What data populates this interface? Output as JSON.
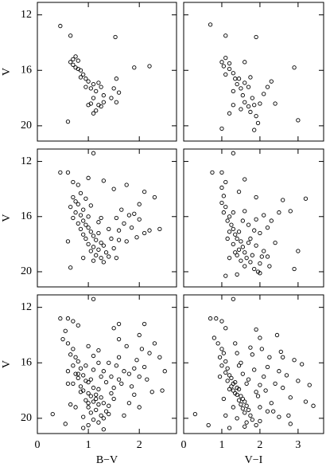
{
  "chart_data": [
    {
      "type": "scatter",
      "color": "#000000",
      "ylabel": "V",
      "xlim": [
        0,
        2.73
      ],
      "ylim": [
        21.1,
        11.1
      ],
      "yticks": [
        12,
        16,
        20
      ],
      "x": [
        0.45,
        0.65,
        0.7,
        0.75,
        0.8,
        0.7,
        0.75,
        0.8,
        0.85,
        0.65,
        0.9,
        0.95,
        0.85,
        1.0,
        1.1,
        1.05,
        1.15,
        0.95,
        1.2,
        1.25,
        1.3,
        1.1,
        1.05,
        1.2,
        1.25,
        1.15,
        1.1,
        1.5,
        1.6,
        1.55,
        1.45,
        1.55,
        1.9,
        2.2,
        1.53,
        0.6,
        1.0,
        1.3
      ],
      "values": [
        12.8,
        13.5,
        15.2,
        15.0,
        15.3,
        15.6,
        15.8,
        15.9,
        16.0,
        15.4,
        16.3,
        16.6,
        16.5,
        16.8,
        17.0,
        17.3,
        17.5,
        17.2,
        16.9,
        17.2,
        17.8,
        18.0,
        18.4,
        18.5,
        18.6,
        18.9,
        19.1,
        17.3,
        17.6,
        18.3,
        18.0,
        16.6,
        15.8,
        15.7,
        13.6,
        19.7,
        18.5,
        18.3
      ]
    },
    {
      "type": "scatter",
      "color": "#000000",
      "xlim": [
        0,
        3.67
      ],
      "ylim": [
        21.1,
        11.1
      ],
      "x": [
        0.7,
        1.1,
        1.9,
        2.9,
        3.0,
        1.0,
        1.1,
        1.05,
        1.2,
        1.2,
        1.3,
        1.1,
        1.35,
        1.4,
        1.5,
        1.6,
        1.45,
        1.7,
        1.3,
        1.55,
        1.8,
        1.6,
        1.7,
        1.85,
        1.5,
        1.75,
        1.9,
        2.0,
        2.1,
        2.3,
        2.4,
        1.95,
        1.85,
        1.0,
        1.2,
        1.3,
        2.2,
        1.6,
        1.75
      ],
      "values": [
        12.7,
        13.5,
        13.6,
        15.8,
        19.6,
        15.4,
        15.1,
        15.7,
        15.5,
        15.9,
        16.2,
        16.3,
        16.6,
        17.0,
        17.3,
        16.9,
        16.6,
        17.2,
        17.5,
        17.8,
        18.0,
        18.3,
        18.6,
        18.5,
        18.8,
        19.0,
        19.3,
        18.4,
        17.7,
        16.8,
        18.4,
        19.8,
        20.3,
        20.2,
        19.1,
        18.5,
        17.2,
        15.4,
        16.5
      ]
    },
    {
      "type": "scatter",
      "color": "#000000",
      "ylabel": "V",
      "xlim": [
        0,
        2.73
      ],
      "ylim": [
        21.1,
        11.1
      ],
      "yticks": [
        12,
        16,
        20
      ],
      "x": [
        0.45,
        0.6,
        0.7,
        0.8,
        1.0,
        1.1,
        0.85,
        0.7,
        0.75,
        0.8,
        0.65,
        0.9,
        0.75,
        0.85,
        0.7,
        0.9,
        0.8,
        0.95,
        1.0,
        0.85,
        1.05,
        0.9,
        1.1,
        1.2,
        0.95,
        1.15,
        1.25,
        1.0,
        1.1,
        1.3,
        1.2,
        1.05,
        1.35,
        1.15,
        1.25,
        1.4,
        1.1,
        1.3,
        0.9,
        1.5,
        1.45,
        1.6,
        1.7,
        1.55,
        1.8,
        1.65,
        1.9,
        2.0,
        1.85,
        2.1,
        1.95,
        2.2,
        1.75,
        2.0,
        2.3,
        1.5,
        1.3,
        1.75,
        2.1,
        1.6,
        1.4,
        1.0,
        0.6,
        0.65,
        1.2,
        1.55,
        0.95,
        1.05,
        2.4,
        1.25
      ],
      "values": [
        12.8,
        12.8,
        13.5,
        13.7,
        13.2,
        11.4,
        14.3,
        14.6,
        14.9,
        15.1,
        15.3,
        15.5,
        15.7,
        15.9,
        16.1,
        16.3,
        16.5,
        16.6,
        16.8,
        16.9,
        17.1,
        17.3,
        17.4,
        17.2,
        17.6,
        17.7,
        17.9,
        18.0,
        18.2,
        18.1,
        18.4,
        18.5,
        18.6,
        18.8,
        19.0,
        18.9,
        19.2,
        19.3,
        19.0,
        18.3,
        17.6,
        17.0,
        16.5,
        16.1,
        15.9,
        15.5,
        15.8,
        16.2,
        16.8,
        17.2,
        17.5,
        17.0,
        17.8,
        15.1,
        14.6,
        14.0,
        13.4,
        13.7,
        14.2,
        17.7,
        16.9,
        16.0,
        17.8,
        19.7,
        16.4,
        19.0,
        14.7,
        15.2,
        16.9,
        16.1
      ]
    },
    {
      "type": "scatter",
      "color": "#000000",
      "xlim": [
        0,
        3.67
      ],
      "ylim": [
        21.1,
        11.1
      ],
      "x": [
        0.75,
        1.0,
        1.1,
        1.3,
        1.6,
        2.8,
        3.2,
        3.0,
        2.9,
        1.0,
        1.05,
        1.0,
        1.1,
        1.05,
        1.2,
        1.15,
        1.25,
        1.3,
        1.2,
        1.35,
        1.45,
        1.4,
        1.5,
        1.3,
        1.55,
        1.45,
        1.6,
        1.4,
        1.65,
        1.5,
        1.75,
        1.6,
        1.85,
        1.95,
        2.0,
        1.8,
        1.9,
        2.1,
        1.75,
        2.0,
        2.2,
        1.7,
        1.9,
        2.1,
        1.6,
        2.3,
        2.4,
        2.2,
        2.5,
        1.9,
        1.45,
        1.2,
        1.1,
        1.35,
        1.55,
        1.7,
        1.3,
        2.05,
        2.25,
        1.15,
        1.85,
        2.6,
        1.4,
        2.0
      ],
      "values": [
        12.8,
        12.8,
        13.5,
        11.4,
        13.3,
        15.6,
        14.7,
        18.5,
        19.8,
        13.9,
        14.5,
        15.0,
        15.3,
        15.7,
        16.0,
        16.3,
        16.6,
        16.9,
        17.1,
        17.3,
        17.1,
        17.6,
        17.8,
        18.0,
        18.2,
        18.4,
        18.6,
        18.8,
        19.0,
        19.2,
        19.3,
        19.6,
        19.8,
        20.0,
        19.4,
        18.8,
        18.1,
        18.5,
        17.6,
        17.2,
        16.8,
        16.6,
        16.2,
        15.9,
        15.6,
        16.3,
        17.9,
        18.9,
        15.7,
        14.6,
        14.2,
        19.0,
        20.3,
        18.6,
        16.3,
        17.9,
        15.7,
        18.9,
        19.6,
        17.6,
        17.0,
        14.8,
        20.2,
        20.1
      ]
    },
    {
      "type": "scatter",
      "color": "#000000",
      "ylabel": "V",
      "xlabel": "B−V",
      "xlim": [
        0,
        2.73
      ],
      "ylim": [
        21.1,
        11.1
      ],
      "xticks": [
        0,
        1,
        2
      ],
      "yticks": [
        12,
        16,
        20
      ],
      "x": [
        0.45,
        0.6,
        0.55,
        0.7,
        0.8,
        1.1,
        1.5,
        1.6,
        2.0,
        2.1,
        0.5,
        0.6,
        0.7,
        0.65,
        0.75,
        0.8,
        0.7,
        0.85,
        0.6,
        0.75,
        0.9,
        0.8,
        0.95,
        0.7,
        1.0,
        0.85,
        1.1,
        0.9,
        1.2,
        1.0,
        1.05,
        1.15,
        1.25,
        0.95,
        1.1,
        1.3,
        1.2,
        1.0,
        1.4,
        1.15,
        1.05,
        1.35,
        1.25,
        0.9,
        1.1,
        1.2,
        1.3,
        1.0,
        1.15,
        1.45,
        0.85,
        1.05,
        1.25,
        0.8,
        1.35,
        1.1,
        0.95,
        1.2,
        1.5,
        1.3,
        1.0,
        0.75,
        1.4,
        1.6,
        1.7,
        1.55,
        1.8,
        1.65,
        1.9,
        2.0,
        1.85,
        2.1,
        1.95,
        2.2,
        2.3,
        2.4,
        2.5,
        2.15,
        1.75,
        2.05,
        1.6,
        2.25,
        1.5,
        1.8,
        1.45,
        0.3,
        0.55,
        0.65,
        1.2,
        1.0,
        1.6,
        1.4,
        2.45,
        2.0,
        1.3,
        0.9,
        1.7,
        0.6,
        1.9,
        1.1
      ],
      "values": [
        12.8,
        12.8,
        13.7,
        13.0,
        13.3,
        11.4,
        13.5,
        13.2,
        14.0,
        13.2,
        14.3,
        14.6,
        15.0,
        15.4,
        15.6,
        15.9,
        16.2,
        16.4,
        16.6,
        16.8,
        16.9,
        17.1,
        17.3,
        17.5,
        17.4,
        17.7,
        17.8,
        18.0,
        17.9,
        18.2,
        18.4,
        18.3,
        18.5,
        18.7,
        18.8,
        18.9,
        19.0,
        19.2,
        19.1,
        19.4,
        19.6,
        19.5,
        19.8,
        19.9,
        20.1,
        20.3,
        20.0,
        20.5,
        18.6,
        18.2,
        18.1,
        17.2,
        17.0,
        16.8,
        17.4,
        16.5,
        16.2,
        16.0,
        17.8,
        16.6,
        18.9,
        19.2,
        19.7,
        17.2,
        16.6,
        16.2,
        16.8,
        17.5,
        16.4,
        17.0,
        17.7,
        16.3,
        15.8,
        15.3,
        14.6,
        15.6,
        16.6,
        17.2,
        14.8,
        15.0,
        14.3,
        18.1,
        18.6,
        18.9,
        17.0,
        19.7,
        20.4,
        19.0,
        15.1,
        14.8,
        15.6,
        16.0,
        18.0,
        19.2,
        20.8,
        20.7,
        19.8,
        17.5,
        18.3,
        15.5
      ]
    },
    {
      "type": "scatter",
      "color": "#000000",
      "xlabel": "V−I",
      "xlim": [
        0,
        3.67
      ],
      "ylim": [
        21.1,
        11.1
      ],
      "xticks": [
        0,
        1,
        2,
        3
      ],
      "x": [
        0.7,
        0.85,
        1.0,
        1.1,
        1.3,
        1.9,
        2.0,
        0.8,
        0.9,
        1.0,
        1.05,
        0.95,
        1.1,
        1.0,
        1.15,
        1.1,
        1.2,
        1.25,
        1.15,
        1.3,
        1.35,
        1.25,
        1.4,
        1.3,
        1.45,
        1.35,
        1.5,
        1.4,
        1.55,
        1.45,
        1.6,
        1.5,
        1.65,
        1.55,
        1.7,
        1.6,
        1.75,
        1.4,
        1.8,
        1.65,
        1.9,
        1.3,
        1.55,
        1.85,
        1.2,
        1.45,
        2.0,
        1.7,
        1.95,
        2.1,
        2.2,
        2.0,
        2.3,
        2.4,
        2.15,
        2.5,
        2.6,
        2.35,
        2.7,
        2.8,
        3.0,
        3.2,
        3.4,
        2.9,
        2.55,
        2.25,
        2.05,
        1.8,
        2.75,
        3.1,
        0.3,
        0.65,
        1.2,
        1.6,
        2.0,
        2.5,
        1.35,
        1.75,
        2.45,
        3.3,
        1.05,
        1.5,
        2.6,
        0.95,
        1.9,
        2.2,
        1.1,
        1.65,
        2.8,
        1.4
      ],
      "values": [
        12.8,
        12.8,
        13.0,
        13.5,
        11.4,
        13.6,
        14.2,
        14.2,
        14.6,
        15.0,
        15.3,
        15.6,
        15.9,
        16.2,
        16.4,
        16.7,
        16.9,
        17.1,
        17.3,
        17.5,
        17.4,
        17.7,
        17.8,
        18.0,
        17.9,
        18.2,
        18.4,
        18.3,
        18.6,
        18.7,
        18.8,
        19.0,
        19.1,
        19.3,
        19.4,
        19.6,
        19.8,
        20.0,
        20.1,
        20.3,
        20.5,
        19.2,
        16.8,
        16.5,
        17.9,
        16.2,
        17.6,
        17.2,
        18.4,
        17.0,
        16.3,
        19.2,
        18.9,
        17.5,
        18.0,
        16.6,
        17.8,
        19.5,
        16.9,
        18.5,
        17.3,
        18.8,
        19.1,
        15.8,
        15.2,
        15.6,
        15.0,
        15.4,
        19.8,
        16.1,
        19.7,
        20.5,
        20.7,
        20.6,
        20.2,
        19.9,
        14.6,
        14.9,
        14.0,
        17.6,
        18.6,
        16.0,
        15.6,
        17.0,
        18.1,
        19.5,
        19.8,
        17.5,
        20.4,
        15.3
      ]
    }
  ]
}
